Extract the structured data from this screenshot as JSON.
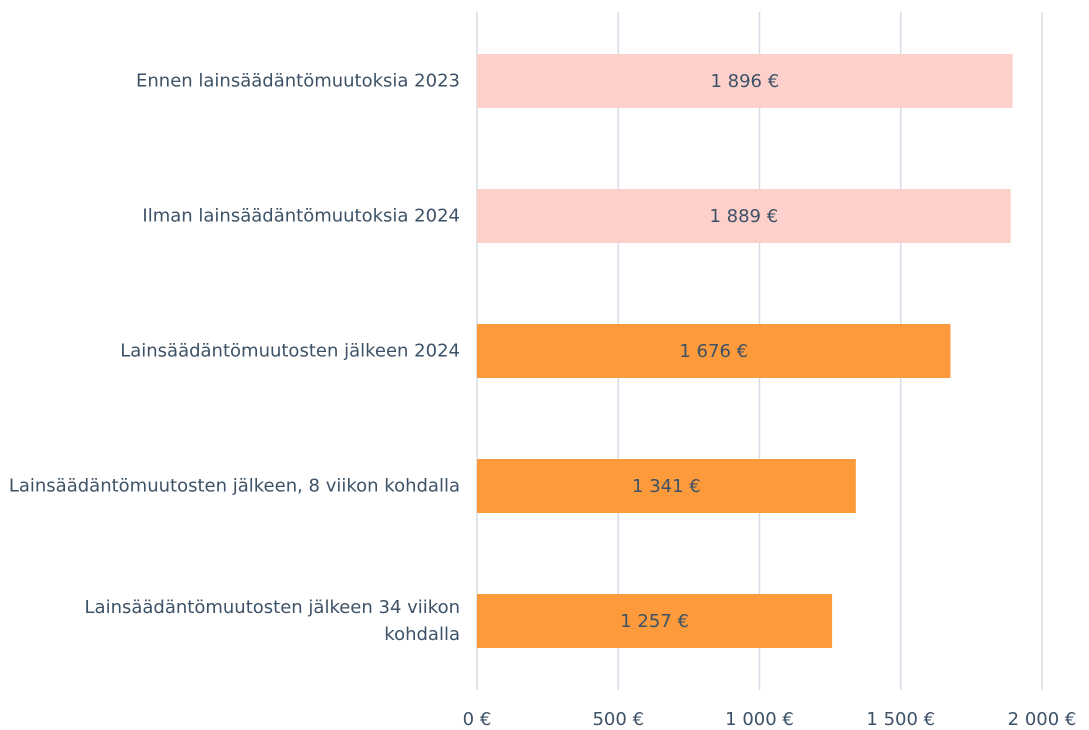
{
  "chart_data": {
    "type": "barh",
    "categories": [
      "Ennen lainsäädäntömuutoksia 2023",
      "Ilman lainsäädäntömuutoksia 2024",
      "Lainsäädäntömuutosten jälkeen 2024",
      "Lainsäädäntömuutosten jälkeen, 8 viikon kohdalla",
      "Lainsäädäntömuutosten jälkeen 34 viikon kohdalla"
    ],
    "values": [
      1896,
      1889,
      1676,
      1341,
      1257
    ],
    "value_labels": [
      "1 896 €",
      "1 889 €",
      "1 676 €",
      "1 341 €",
      "1 257 €"
    ],
    "colors": [
      "#fdd0cc",
      "#fdd0cc",
      "#fd9b3c",
      "#fd9b3c",
      "#fd9b3c"
    ],
    "xlim": [
      0,
      2000
    ],
    "xticks": [
      {
        "value": 0,
        "label": "0 €"
      },
      {
        "value": 500,
        "label": "500 €"
      },
      {
        "value": 1000,
        "label": "1 000 €"
      },
      {
        "value": 1500,
        "label": "1 500 €"
      },
      {
        "value": 2000,
        "label": "2 000 €"
      }
    ],
    "grid": true
  }
}
